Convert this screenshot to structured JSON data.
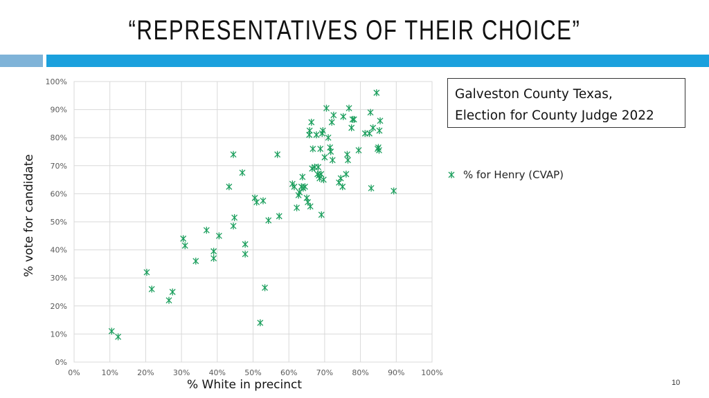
{
  "slide": {
    "title": "“REPRESENTATIVES OF THEIR CHOICE”",
    "page_number": "10",
    "colors": {
      "accent_light": "#7fb3d8",
      "accent": "#1aa0dd",
      "marker": "#1a9e5c"
    }
  },
  "info_box": {
    "line1": "Galveston County Texas,",
    "line2": "Election for County Judge 2022"
  },
  "chart_data": {
    "type": "scatter",
    "xlabel": "% White in precinct",
    "ylabel": "% vote for candidate",
    "xlim": [
      0,
      1
    ],
    "ylim": [
      0,
      1
    ],
    "x_ticks": [
      "0%",
      "10%",
      "20%",
      "30%",
      "40%",
      "50%",
      "60%",
      "70%",
      "80%",
      "90%",
      "100%"
    ],
    "y_ticks": [
      "0%",
      "10%",
      "20%",
      "30%",
      "40%",
      "50%",
      "60%",
      "70%",
      "80%",
      "90%",
      "100%"
    ],
    "grid": true,
    "legend_position": "right",
    "marker": "asterisk",
    "series": [
      {
        "name": "% for Henry (CVAP)",
        "color": "#1a9e5c",
        "points": [
          [
            0.105,
            0.11
          ],
          [
            0.123,
            0.09
          ],
          [
            0.203,
            0.32
          ],
          [
            0.217,
            0.26
          ],
          [
            0.265,
            0.22
          ],
          [
            0.275,
            0.25
          ],
          [
            0.305,
            0.44
          ],
          [
            0.31,
            0.415
          ],
          [
            0.34,
            0.36
          ],
          [
            0.37,
            0.47
          ],
          [
            0.39,
            0.395
          ],
          [
            0.39,
            0.37
          ],
          [
            0.405,
            0.45
          ],
          [
            0.433,
            0.625
          ],
          [
            0.445,
            0.74
          ],
          [
            0.445,
            0.485
          ],
          [
            0.448,
            0.515
          ],
          [
            0.47,
            0.675
          ],
          [
            0.478,
            0.42
          ],
          [
            0.478,
            0.385
          ],
          [
            0.505,
            0.585
          ],
          [
            0.51,
            0.57
          ],
          [
            0.52,
            0.14
          ],
          [
            0.528,
            0.575
          ],
          [
            0.533,
            0.265
          ],
          [
            0.543,
            0.505
          ],
          [
            0.568,
            0.74
          ],
          [
            0.573,
            0.52
          ],
          [
            0.61,
            0.635
          ],
          [
            0.615,
            0.625
          ],
          [
            0.622,
            0.55
          ],
          [
            0.627,
            0.595
          ],
          [
            0.63,
            0.605
          ],
          [
            0.635,
            0.625
          ],
          [
            0.638,
            0.66
          ],
          [
            0.64,
            0.62
          ],
          [
            0.645,
            0.625
          ],
          [
            0.65,
            0.585
          ],
          [
            0.653,
            0.57
          ],
          [
            0.657,
            0.81
          ],
          [
            0.658,
            0.825
          ],
          [
            0.66,
            0.555
          ],
          [
            0.663,
            0.855
          ],
          [
            0.665,
            0.69
          ],
          [
            0.667,
            0.76
          ],
          [
            0.672,
            0.695
          ],
          [
            0.677,
            0.81
          ],
          [
            0.68,
            0.67
          ],
          [
            0.682,
            0.695
          ],
          [
            0.684,
            0.665
          ],
          [
            0.686,
            0.655
          ],
          [
            0.688,
            0.76
          ],
          [
            0.69,
            0.67
          ],
          [
            0.691,
            0.525
          ],
          [
            0.693,
            0.815
          ],
          [
            0.695,
            0.825
          ],
          [
            0.697,
            0.65
          ],
          [
            0.7,
            0.73
          ],
          [
            0.705,
            0.905
          ],
          [
            0.71,
            0.8
          ],
          [
            0.715,
            0.765
          ],
          [
            0.717,
            0.75
          ],
          [
            0.72,
            0.855
          ],
          [
            0.722,
            0.72
          ],
          [
            0.725,
            0.88
          ],
          [
            0.74,
            0.64
          ],
          [
            0.745,
            0.655
          ],
          [
            0.75,
            0.625
          ],
          [
            0.752,
            0.875
          ],
          [
            0.76,
            0.67
          ],
          [
            0.763,
            0.74
          ],
          [
            0.765,
            0.72
          ],
          [
            0.768,
            0.905
          ],
          [
            0.775,
            0.835
          ],
          [
            0.778,
            0.865
          ],
          [
            0.782,
            0.865
          ],
          [
            0.795,
            0.755
          ],
          [
            0.813,
            0.815
          ],
          [
            0.825,
            0.815
          ],
          [
            0.828,
            0.89
          ],
          [
            0.83,
            0.62
          ],
          [
            0.835,
            0.835
          ],
          [
            0.845,
            0.96
          ],
          [
            0.848,
            0.76
          ],
          [
            0.85,
            0.765
          ],
          [
            0.852,
            0.755
          ],
          [
            0.853,
            0.825
          ],
          [
            0.855,
            0.86
          ],
          [
            0.893,
            0.61
          ]
        ]
      }
    ]
  }
}
